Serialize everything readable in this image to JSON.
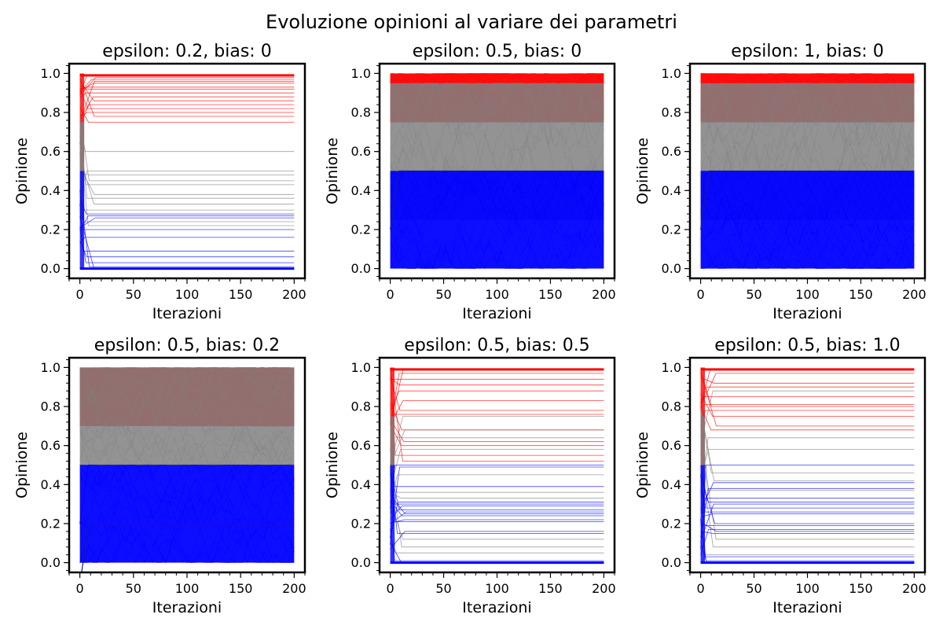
{
  "figure": {
    "title": "Evoluzione opinioni al variare dei parametri"
  },
  "colors": {
    "above": "#ff0000",
    "below": "#0000ff",
    "middle": "#808080",
    "axes": "#000000",
    "background": "#ffffff"
  },
  "chart_data": [
    {
      "type": "line",
      "title": "epsilon: 0.2, bias: 0",
      "xlabel": "Iterazioni",
      "ylabel": "Opinione",
      "xlim": [
        -10,
        210
      ],
      "ylim": [
        -0.05,
        1.05
      ],
      "xticks": [
        0,
        50,
        100,
        150,
        200
      ],
      "yticks": [
        0.0,
        0.2,
        0.4,
        0.6,
        0.8,
        1.0
      ],
      "xtick_labels": [
        "0",
        "50",
        "100",
        "150",
        "200"
      ],
      "ytick_labels": [
        "0.0",
        "0.2",
        "0.4",
        "0.6",
        "0.8",
        "1.0"
      ],
      "series": [
        {
          "color": "red",
          "regime": "converged",
          "levels": [
            0.99,
            0.98,
            0.97,
            0.96,
            0.95,
            0.93,
            0.92,
            0.9,
            0.88,
            0.86,
            0.84,
            0.82,
            0.8,
            0.78,
            0.75
          ]
        },
        {
          "color": "gray",
          "regime": "converged",
          "levels": [
            0.6,
            0.5,
            0.48,
            0.45,
            0.43,
            0.38,
            0.36,
            0.33,
            0.3,
            0.24,
            0.22
          ]
        },
        {
          "color": "blue",
          "regime": "converged",
          "levels": [
            0.28,
            0.27,
            0.26,
            0.2,
            0.16,
            0.09,
            0.06,
            0.03,
            0.01,
            0.0
          ]
        }
      ]
    },
    {
      "type": "line",
      "title": "epsilon: 0.5, bias: 0",
      "xlabel": "Iterazioni",
      "ylabel": "Opinione",
      "xlim": [
        -10,
        210
      ],
      "ylim": [
        -0.05,
        1.05
      ],
      "xticks": [
        0,
        50,
        100,
        150,
        200
      ],
      "yticks": [
        0.0,
        0.2,
        0.4,
        0.6,
        0.8,
        1.0
      ],
      "xtick_labels": [
        "0",
        "50",
        "100",
        "150",
        "200"
      ],
      "ytick_labels": [
        "0.0",
        "0.2",
        "0.4",
        "0.6",
        "0.8",
        "1.0"
      ],
      "series": [
        {
          "color": "red",
          "regime": "noisy",
          "range": [
            0.75,
            1.0
          ]
        },
        {
          "color": "gray",
          "regime": "noisy",
          "range": [
            0.25,
            0.95
          ]
        },
        {
          "color": "blue",
          "regime": "noisy",
          "range": [
            0.0,
            0.5
          ],
          "trend_line": 0.5
        }
      ]
    },
    {
      "type": "line",
      "title": "epsilon: 1, bias: 0",
      "xlabel": "Iterazioni",
      "ylabel": "Opinione",
      "xlim": [
        -10,
        210
      ],
      "ylim": [
        -0.05,
        1.05
      ],
      "xticks": [
        0,
        50,
        100,
        150,
        200
      ],
      "yticks": [
        0.0,
        0.2,
        0.4,
        0.6,
        0.8,
        1.0
      ],
      "xtick_labels": [
        "0",
        "50",
        "100",
        "150",
        "200"
      ],
      "ytick_labels": [
        "0.0",
        "0.2",
        "0.4",
        "0.6",
        "0.8",
        "1.0"
      ],
      "series": [
        {
          "color": "red",
          "regime": "noisy",
          "range": [
            0.75,
            1.0
          ]
        },
        {
          "color": "gray",
          "regime": "noisy",
          "range": [
            0.25,
            0.95
          ]
        },
        {
          "color": "blue",
          "regime": "noisy",
          "range": [
            0.0,
            0.5
          ],
          "trend_line": 0.5
        }
      ]
    },
    {
      "type": "line",
      "title": "epsilon: 0.5, bias: 0.2",
      "xlabel": "Iterazioni",
      "ylabel": "Opinione",
      "xlim": [
        -10,
        210
      ],
      "ylim": [
        -0.05,
        1.05
      ],
      "xticks": [
        0,
        50,
        100,
        150,
        200
      ],
      "yticks": [
        0.0,
        0.2,
        0.4,
        0.6,
        0.8,
        1.0
      ],
      "xtick_labels": [
        "0",
        "50",
        "100",
        "150",
        "200"
      ],
      "ytick_labels": [
        "0.0",
        "0.2",
        "0.4",
        "0.6",
        "0.8",
        "1.0"
      ],
      "series": [
        {
          "color": "red",
          "regime": "noisy",
          "range": [
            0.7,
            1.0
          ]
        },
        {
          "color": "gray",
          "regime": "noisy",
          "range": [
            0.5,
            1.0
          ],
          "trend_line": 0.5
        },
        {
          "color": "blue",
          "regime": "noisy",
          "range": [
            0.0,
            0.5
          ],
          "trend_line": 0.19
        }
      ]
    },
    {
      "type": "line",
      "title": "epsilon: 0.5, bias: 0.5",
      "xlabel": "Iterazioni",
      "ylabel": "Opinione",
      "xlim": [
        -10,
        210
      ],
      "ylim": [
        -0.05,
        1.05
      ],
      "xticks": [
        0,
        50,
        100,
        150,
        200
      ],
      "yticks": [
        0.0,
        0.2,
        0.4,
        0.6,
        0.8,
        1.0
      ],
      "xtick_labels": [
        "0",
        "50",
        "100",
        "150",
        "200"
      ],
      "ytick_labels": [
        "0.0",
        "0.2",
        "0.4",
        "0.6",
        "0.8",
        "1.0"
      ],
      "series": [
        {
          "color": "red",
          "regime": "converged",
          "levels": [
            0.99,
            0.97,
            0.94,
            0.91,
            0.88,
            0.83,
            0.78,
            0.76,
            0.68,
            0.62,
            0.6,
            0.55,
            0.52
          ]
        },
        {
          "color": "gray",
          "regime": "converged",
          "levels": [
            0.75,
            0.68,
            0.64,
            0.58,
            0.45,
            0.36,
            0.33,
            0.12,
            0.08,
            0.05
          ]
        },
        {
          "color": "blue",
          "regime": "converged",
          "levels": [
            0.5,
            0.49,
            0.39,
            0.31,
            0.3,
            0.29,
            0.27,
            0.26,
            0.25,
            0.24,
            0.22,
            0.21,
            0.16,
            0.15,
            0.01,
            0.0
          ]
        }
      ]
    },
    {
      "type": "line",
      "title": "epsilon: 0.5, bias: 1.0",
      "xlabel": "Iterazioni",
      "ylabel": "Opinione",
      "xlim": [
        -10,
        210
      ],
      "ylim": [
        -0.05,
        1.05
      ],
      "xticks": [
        0,
        50,
        100,
        150,
        200
      ],
      "yticks": [
        0.0,
        0.2,
        0.4,
        0.6,
        0.8,
        1.0
      ],
      "xtick_labels": [
        "0",
        "50",
        "100",
        "150",
        "200"
      ],
      "ytick_labels": [
        "0.0",
        "0.2",
        "0.4",
        "0.6",
        "0.8",
        "1.0"
      ],
      "series": [
        {
          "color": "red",
          "regime": "converged",
          "levels": [
            0.99,
            0.97,
            0.92,
            0.9,
            0.85,
            0.81,
            0.8,
            0.78,
            0.75,
            0.7,
            0.68
          ]
        },
        {
          "color": "gray",
          "regime": "converged",
          "levels": [
            0.88,
            0.64,
            0.58,
            0.46,
            0.42,
            0.37,
            0.12,
            0.08,
            0.04
          ]
        },
        {
          "color": "blue",
          "regime": "converged",
          "levels": [
            0.5,
            0.41,
            0.38,
            0.33,
            0.31,
            0.3,
            0.28,
            0.26,
            0.25,
            0.2,
            0.19,
            0.17,
            0.16,
            0.15,
            0.03,
            0.01,
            0.0
          ]
        }
      ]
    }
  ]
}
